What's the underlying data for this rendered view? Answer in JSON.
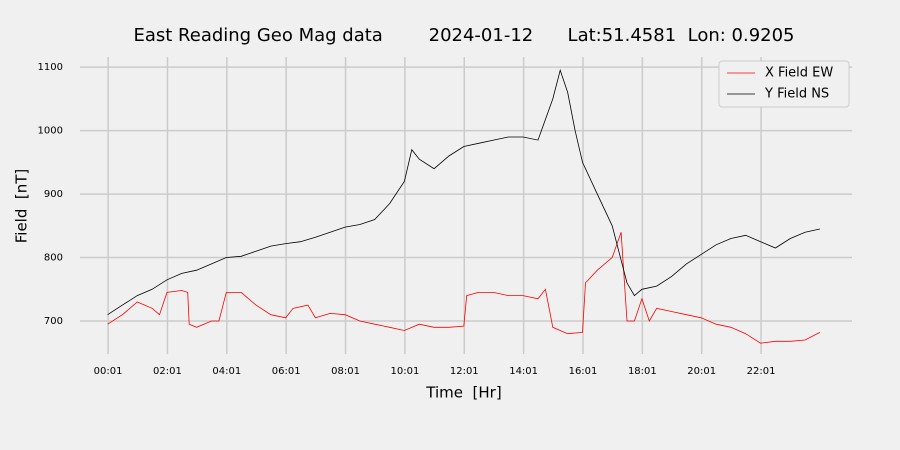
{
  "chart_data": {
    "type": "line",
    "title": "East Reading Geo Mag data        2024-01-12      Lat:51.4581  Lon: 0.9205",
    "xlabel": "Time  [Hr]",
    "ylabel": "Field  [nT]",
    "xlim": [
      -0.93,
      25.08
    ],
    "ylim": [
      648,
      1116
    ],
    "xticks": [
      {
        "value": 0.0167,
        "label": "00:01"
      },
      {
        "value": 2.0167,
        "label": "02:01"
      },
      {
        "value": 4.0167,
        "label": "04:01"
      },
      {
        "value": 6.0167,
        "label": "06:01"
      },
      {
        "value": 8.0167,
        "label": "08:01"
      },
      {
        "value": 10.0167,
        "label": "10:01"
      },
      {
        "value": 12.0167,
        "label": "12:01"
      },
      {
        "value": 14.0167,
        "label": "14:01"
      },
      {
        "value": 16.0167,
        "label": "16:01"
      },
      {
        "value": 18.0167,
        "label": "18:01"
      },
      {
        "value": 20.0167,
        "label": "20:01"
      },
      {
        "value": 22.0167,
        "label": "22:01"
      }
    ],
    "yticks": [
      700,
      800,
      900,
      1000,
      1100
    ],
    "grid": true,
    "legend": "upper right",
    "series": [
      {
        "name": "X Field EW",
        "color": "#ff0000",
        "x": [
          0,
          0.5,
          1,
          1.5,
          1.75,
          2,
          2.5,
          2.7,
          2.75,
          3,
          3.5,
          3.75,
          4,
          4.5,
          5,
          5.5,
          6,
          6.25,
          6.75,
          7,
          7.5,
          8,
          8.5,
          9,
          9.5,
          10,
          10.5,
          11,
          11.5,
          12,
          12.1,
          12.5,
          13,
          13.5,
          14,
          14.5,
          14.75,
          15,
          15.5,
          16,
          16.1,
          16.5,
          17,
          17.3,
          17.5,
          17.75,
          18,
          18.25,
          18.5,
          19,
          19.5,
          20,
          20.5,
          21,
          21.5,
          22,
          22.5,
          23,
          23.5,
          24
        ],
        "values": [
          695,
          710,
          730,
          720,
          710,
          745,
          748,
          745,
          695,
          690,
          700,
          700,
          745,
          745,
          725,
          710,
          705,
          720,
          725,
          705,
          712,
          710,
          700,
          695,
          690,
          685,
          695,
          690,
          690,
          692,
          740,
          745,
          745,
          740,
          740,
          735,
          750,
          690,
          680,
          682,
          760,
          780,
          800,
          840,
          700,
          700,
          735,
          700,
          720,
          715,
          710,
          705,
          695,
          690,
          680,
          665,
          668,
          668,
          670,
          682
        ]
      },
      {
        "name": "Y Field NS",
        "color": "#000000",
        "x": [
          0,
          0.5,
          1,
          1.5,
          2,
          2.5,
          3,
          3.5,
          4,
          4.5,
          5,
          5.5,
          6,
          6.5,
          7,
          7.5,
          8,
          8.5,
          9,
          9.5,
          10,
          10.25,
          10.5,
          11,
          11.5,
          12,
          12.5,
          13,
          13.5,
          14,
          14.5,
          15,
          15.25,
          15.5,
          15.75,
          16,
          16.5,
          17,
          17.5,
          17.75,
          18,
          18.5,
          19,
          19.5,
          20,
          20.5,
          21,
          21.5,
          22,
          22.5,
          23,
          23.5,
          24
        ],
        "values": [
          710,
          725,
          740,
          750,
          765,
          775,
          780,
          790,
          800,
          802,
          810,
          818,
          822,
          825,
          832,
          840,
          848,
          852,
          860,
          885,
          920,
          970,
          955,
          940,
          960,
          975,
          980,
          985,
          990,
          990,
          985,
          1050,
          1095,
          1060,
          1000,
          950,
          900,
          850,
          760,
          740,
          750,
          755,
          770,
          790,
          805,
          820,
          830,
          835,
          825,
          815,
          830,
          840,
          845
        ]
      }
    ]
  }
}
